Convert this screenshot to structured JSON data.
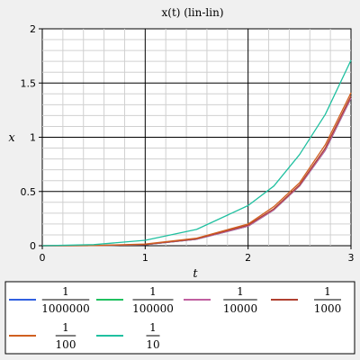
{
  "chart_data": {
    "type": "line",
    "title": "x(t) (lin-lin)",
    "xlabel": "t",
    "ylabel": "x",
    "xlim": [
      0,
      3
    ],
    "ylim": [
      0,
      2
    ],
    "x_ticks": [
      "0",
      "1",
      "2",
      "3"
    ],
    "y_ticks": [
      "0",
      "0.5",
      "1",
      "1.5",
      "2"
    ],
    "grid": true,
    "legend_position": "bottom",
    "x": [
      0,
      0.5,
      1,
      1.5,
      2,
      2.25,
      2.5,
      2.75,
      3
    ],
    "series": [
      {
        "name_num": "1",
        "name_den": "1000000",
        "color": "#3060e0",
        "values": [
          0,
          0.001,
          0.01,
          0.06,
          0.18,
          0.33,
          0.55,
          0.88,
          1.36
        ]
      },
      {
        "name_num": "1",
        "name_den": "100000",
        "color": "#20c060",
        "values": [
          0,
          0.001,
          0.01,
          0.06,
          0.18,
          0.33,
          0.55,
          0.88,
          1.36
        ]
      },
      {
        "name_num": "1",
        "name_den": "10000",
        "color": "#c060a0",
        "values": [
          0,
          0.001,
          0.01,
          0.06,
          0.18,
          0.33,
          0.55,
          0.88,
          1.36
        ]
      },
      {
        "name_num": "1",
        "name_den": "1000",
        "color": "#b04030",
        "values": [
          0,
          0.001,
          0.012,
          0.064,
          0.19,
          0.34,
          0.56,
          0.9,
          1.38
        ]
      },
      {
        "name_num": "1",
        "name_den": "100",
        "color": "#d06020",
        "values": [
          0,
          0.002,
          0.015,
          0.07,
          0.2,
          0.36,
          0.58,
          0.93,
          1.41
        ]
      },
      {
        "name_num": "1",
        "name_den": "10",
        "color": "#20c0a0",
        "values": [
          0,
          0.01,
          0.05,
          0.15,
          0.37,
          0.55,
          0.84,
          1.21,
          1.71
        ]
      }
    ]
  }
}
